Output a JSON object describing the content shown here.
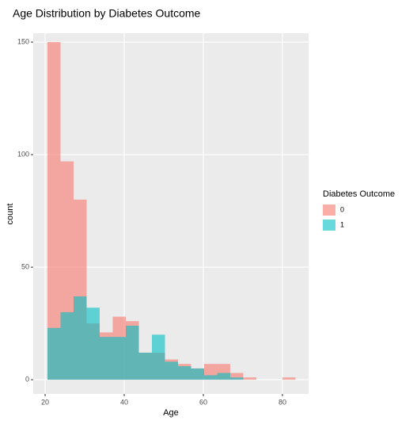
{
  "chart_data": {
    "type": "histogram",
    "title": "Age Distribution by Diabetes Outcome",
    "x_label": "Age",
    "y_label": "count",
    "bins": [
      20.6,
      23.9,
      27.2,
      30.5,
      33.8,
      37.1,
      40.4,
      43.7,
      47.0,
      50.3,
      53.6,
      56.9,
      60.2,
      63.5,
      66.8,
      70.1,
      73.4,
      76.7,
      80.0,
      83.3
    ],
    "series": [
      {
        "name": "0",
        "color": "#F8766D",
        "values": [
          150,
          97,
          80,
          25,
          21,
          28,
          26,
          12,
          12,
          9,
          7,
          5,
          7,
          7,
          3,
          1,
          0,
          0,
          1
        ]
      },
      {
        "name": "1",
        "color": "#00BFC4",
        "values": [
          23,
          30,
          37,
          32,
          19,
          19,
          24,
          12,
          20,
          8,
          6,
          5,
          2,
          3,
          1,
          0,
          0,
          0,
          0
        ]
      }
    ],
    "legend_title": "Diabetes Outcome",
    "xlim": [
      17,
      86.6
    ],
    "ylim": [
      -6.3,
      153.9
    ],
    "xticks": [
      20,
      40,
      60,
      80
    ],
    "yticks": [
      0,
      50,
      100,
      150
    ],
    "grid": true
  }
}
